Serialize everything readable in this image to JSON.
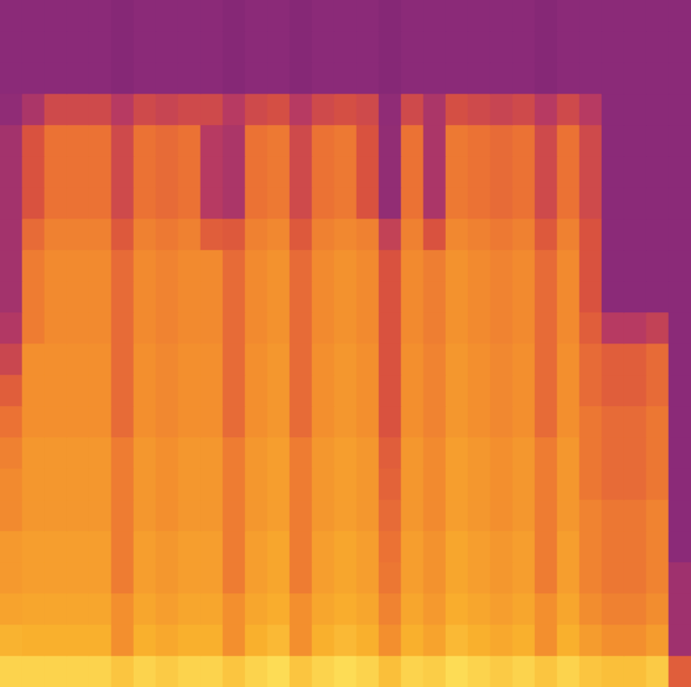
{
  "chart_data": {
    "type": "heatmap",
    "tick_labels": false,
    "zlim": [
      0,
      100
    ],
    "cells": [
      [
        12,
        12,
        12,
        12,
        12,
        10,
        12,
        12,
        12,
        12,
        10,
        12,
        12,
        10,
        12,
        12,
        12,
        10,
        12,
        12,
        12,
        12,
        12,
        12,
        10,
        12,
        12,
        12,
        12,
        12,
        12
      ],
      [
        12,
        12,
        12,
        12,
        12,
        10,
        12,
        12,
        12,
        12,
        10,
        12,
        12,
        10,
        12,
        12,
        12,
        10,
        12,
        12,
        12,
        12,
        12,
        12,
        10,
        12,
        12,
        12,
        12,
        12,
        12
      ],
      [
        12,
        12,
        12,
        12,
        12,
        10,
        12,
        12,
        12,
        12,
        10,
        12,
        12,
        10,
        12,
        12,
        12,
        10,
        12,
        12,
        12,
        12,
        12,
        12,
        10,
        12,
        12,
        12,
        12,
        12,
        12
      ],
      [
        14,
        25,
        40,
        40,
        40,
        30,
        40,
        37,
        40,
        40,
        30,
        40,
        43,
        30,
        40,
        43,
        40,
        14,
        40,
        25,
        43,
        40,
        37,
        40,
        30,
        40,
        30,
        12,
        12,
        12,
        12
      ],
      [
        22,
        45,
        58,
        58,
        58,
        40,
        58,
        55,
        58,
        30,
        25,
        58,
        61,
        40,
        58,
        61,
        45,
        15,
        58,
        25,
        61,
        58,
        55,
        58,
        40,
        58,
        40,
        12,
        12,
        12,
        12
      ],
      [
        22,
        45,
        58,
        58,
        58,
        40,
        58,
        55,
        58,
        30,
        25,
        58,
        61,
        40,
        58,
        61,
        45,
        15,
        58,
        25,
        61,
        58,
        55,
        58,
        40,
        58,
        40,
        12,
        12,
        12,
        12
      ],
      [
        22,
        45,
        58,
        58,
        58,
        40,
        58,
        55,
        58,
        30,
        25,
        58,
        61,
        40,
        58,
        61,
        45,
        15,
        58,
        25,
        61,
        58,
        55,
        58,
        40,
        58,
        40,
        12,
        12,
        12,
        12
      ],
      [
        22,
        55,
        64,
        64,
        64,
        48,
        64,
        61,
        64,
        50,
        48,
        64,
        67,
        48,
        64,
        67,
        64,
        35,
        64,
        45,
        67,
        64,
        61,
        64,
        48,
        64,
        45,
        12,
        12,
        12,
        12
      ],
      [
        22,
        62,
        68,
        68,
        68,
        55,
        68,
        65,
        68,
        68,
        55,
        68,
        71,
        55,
        68,
        71,
        68,
        45,
        68,
        63,
        71,
        68,
        65,
        68,
        55,
        68,
        45,
        12,
        12,
        12,
        12
      ],
      [
        22,
        62,
        68,
        68,
        68,
        55,
        68,
        65,
        68,
        68,
        55,
        68,
        71,
        55,
        68,
        71,
        68,
        45,
        68,
        63,
        71,
        68,
        65,
        68,
        55,
        68,
        45,
        12,
        12,
        12,
        12
      ],
      [
        28,
        62,
        68,
        68,
        68,
        55,
        68,
        65,
        68,
        68,
        55,
        68,
        71,
        55,
        68,
        71,
        68,
        45,
        68,
        63,
        71,
        68,
        65,
        68,
        55,
        68,
        50,
        30,
        30,
        35,
        12
      ],
      [
        38,
        70,
        70,
        70,
        70,
        55,
        70,
        67,
        70,
        70,
        55,
        70,
        73,
        55,
        70,
        73,
        70,
        45,
        70,
        65,
        73,
        70,
        67,
        70,
        55,
        70,
        55,
        50,
        50,
        55,
        12
      ],
      [
        50,
        70,
        70,
        70,
        70,
        55,
        70,
        67,
        70,
        70,
        55,
        70,
        73,
        55,
        70,
        73,
        70,
        45,
        70,
        65,
        73,
        70,
        67,
        70,
        55,
        70,
        55,
        50,
        50,
        55,
        12
      ],
      [
        58,
        70,
        70,
        70,
        70,
        55,
        70,
        67,
        70,
        70,
        55,
        70,
        73,
        55,
        70,
        73,
        70,
        45,
        70,
        65,
        73,
        70,
        67,
        70,
        55,
        70,
        60,
        55,
        55,
        60,
        12
      ],
      [
        64,
        73,
        73,
        73,
        73,
        62,
        73,
        70,
        73,
        73,
        62,
        73,
        76,
        62,
        73,
        76,
        73,
        50,
        73,
        68,
        76,
        73,
        70,
        73,
        62,
        73,
        60,
        55,
        55,
        60,
        12
      ],
      [
        68,
        73,
        73,
        73,
        73,
        62,
        73,
        70,
        73,
        73,
        62,
        73,
        76,
        62,
        73,
        76,
        73,
        52,
        73,
        68,
        76,
        73,
        70,
        73,
        62,
        73,
        60,
        55,
        55,
        60,
        12
      ],
      [
        68,
        73,
        73,
        73,
        73,
        62,
        73,
        70,
        73,
        73,
        62,
        73,
        76,
        62,
        73,
        76,
        73,
        55,
        73,
        68,
        76,
        73,
        70,
        73,
        62,
        73,
        65,
        60,
        60,
        65,
        12
      ],
      [
        74,
        76,
        76,
        76,
        76,
        62,
        76,
        73,
        76,
        76,
        62,
        76,
        79,
        62,
        76,
        79,
        76,
        58,
        76,
        71,
        79,
        76,
        73,
        76,
        62,
        76,
        65,
        60,
        60,
        65,
        12
      ],
      [
        74,
        76,
        76,
        76,
        76,
        62,
        76,
        73,
        76,
        76,
        62,
        76,
        79,
        62,
        76,
        79,
        76,
        60,
        76,
        71,
        79,
        76,
        73,
        76,
        62,
        76,
        65,
        60,
        60,
        65,
        20
      ],
      [
        78,
        79,
        79,
        79,
        79,
        70,
        79,
        76,
        79,
        79,
        70,
        79,
        82,
        70,
        79,
        82,
        79,
        65,
        79,
        74,
        82,
        79,
        76,
        79,
        70,
        79,
        69,
        64,
        64,
        69,
        20
      ],
      [
        84,
        83,
        83,
        83,
        83,
        70,
        83,
        80,
        83,
        83,
        70,
        83,
        86,
        70,
        83,
        86,
        83,
        70,
        83,
        78,
        86,
        83,
        80,
        83,
        70,
        83,
        75,
        70,
        70,
        75,
        20
      ],
      [
        95,
        95,
        95,
        95,
        95,
        90,
        95,
        92,
        95,
        95,
        90,
        95,
        98,
        90,
        95,
        98,
        95,
        88,
        95,
        93,
        98,
        95,
        92,
        95,
        90,
        95,
        90,
        88,
        88,
        92,
        50
      ]
    ]
  }
}
